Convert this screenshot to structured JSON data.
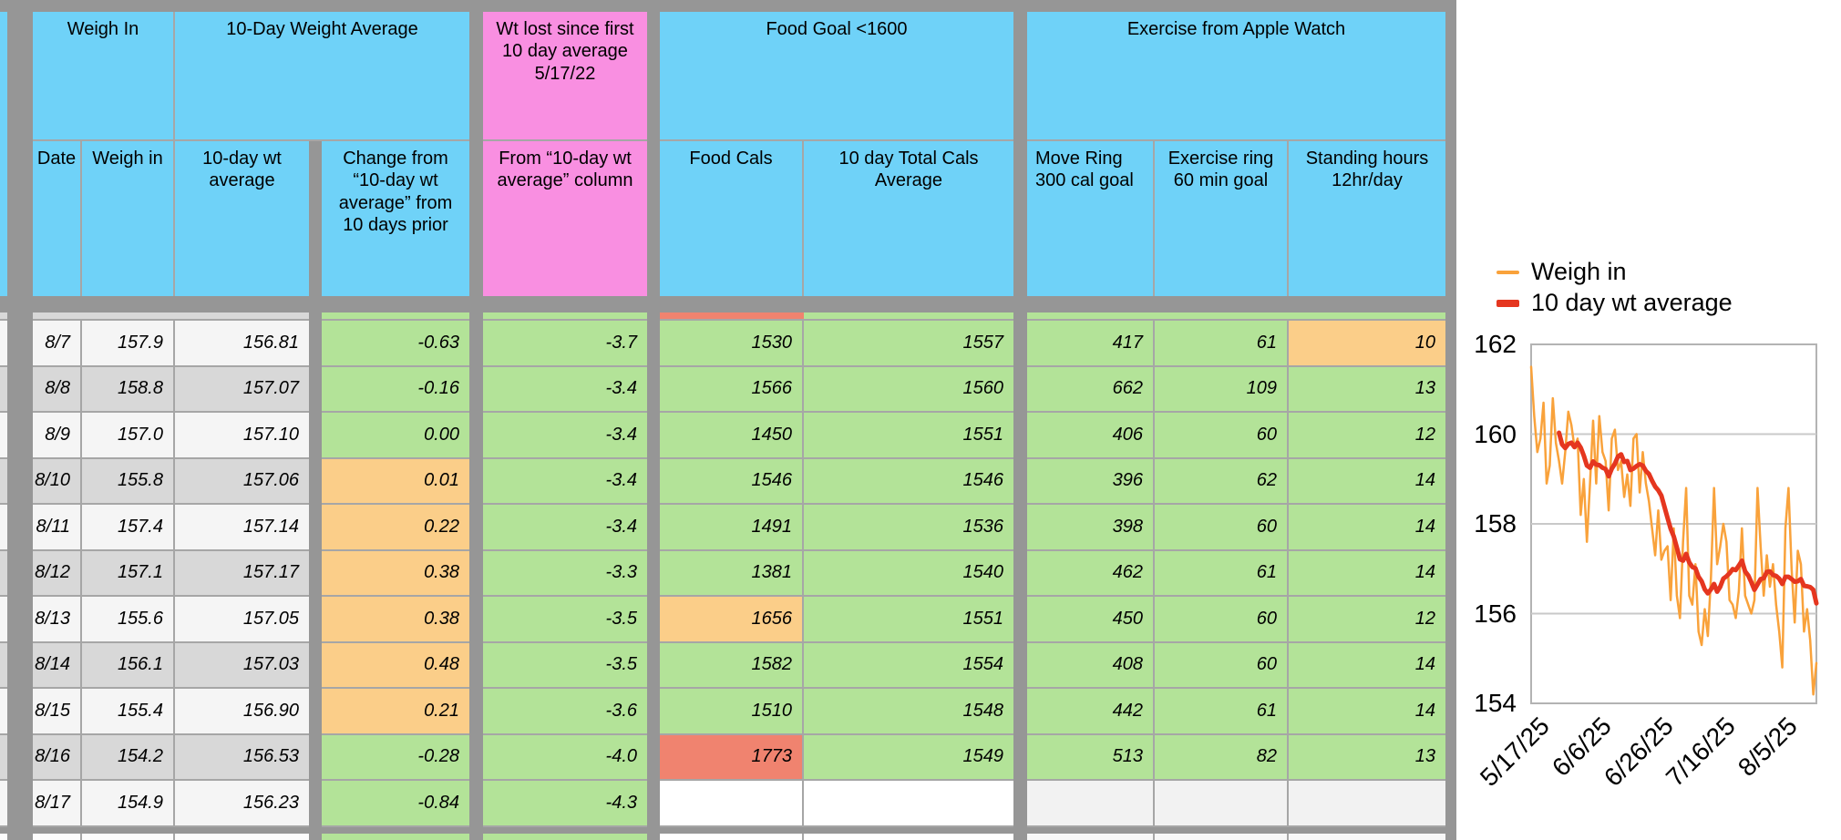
{
  "table": {
    "header_groups": [
      {
        "label": "Weigh In"
      },
      {
        "label": "10-Day Weight Average"
      },
      {
        "label": "Wt lost since first 10 day average 5/17/22"
      },
      {
        "label": "Food Goal <1600"
      },
      {
        "label": "Exercise from Apple Watch"
      }
    ],
    "columns": {
      "date": "Date",
      "weigh": "Weigh in",
      "avg": "10-day wt average",
      "change": "Change from “10-day wt average” from 10 days prior",
      "lost": "From “10-day wt average” column",
      "food": "Food Cals",
      "total": "10 day Total Cals Average",
      "move": "Move Ring 300 cal goal",
      "ex": "Exercise ring 60 min goal",
      "standing": "Standing hours 12hr/day"
    },
    "rows": [
      {
        "date": "8/7",
        "weigh": "157.9",
        "avg": "156.81",
        "change": "-0.63",
        "change_c": "g",
        "lost": "-3.7",
        "food": "1530",
        "total": "1557",
        "move": "417",
        "ex": "61",
        "standing": "10",
        "standing_c": "o",
        "shade": "light"
      },
      {
        "date": "8/8",
        "weigh": "158.8",
        "avg": "157.07",
        "change": "-0.16",
        "change_c": "g",
        "lost": "-3.4",
        "food": "1566",
        "total": "1560",
        "move": "662",
        "ex": "109",
        "standing": "13",
        "shade": "dark"
      },
      {
        "date": "8/9",
        "weigh": "157.0",
        "avg": "157.10",
        "change": "0.00",
        "change_c": "g",
        "lost": "-3.4",
        "food": "1450",
        "total": "1551",
        "move": "406",
        "ex": "60",
        "standing": "12",
        "shade": "light"
      },
      {
        "date": "8/10",
        "weigh": "155.8",
        "avg": "157.06",
        "change": "0.01",
        "change_c": "o",
        "lost": "-3.4",
        "food": "1546",
        "total": "1546",
        "move": "396",
        "ex": "62",
        "standing": "14",
        "shade": "dark"
      },
      {
        "date": "8/11",
        "weigh": "157.4",
        "avg": "157.14",
        "change": "0.22",
        "change_c": "o",
        "lost": "-3.4",
        "food": "1491",
        "total": "1536",
        "move": "398",
        "ex": "60",
        "standing": "14",
        "shade": "light"
      },
      {
        "date": "8/12",
        "weigh": "157.1",
        "avg": "157.17",
        "change": "0.38",
        "change_c": "o",
        "lost": "-3.3",
        "food": "1381",
        "total": "1540",
        "move": "462",
        "ex": "61",
        "standing": "14",
        "shade": "dark"
      },
      {
        "date": "8/13",
        "weigh": "155.6",
        "avg": "157.05",
        "change": "0.38",
        "change_c": "o",
        "lost": "-3.5",
        "food": "1656",
        "food_c": "o",
        "total": "1551",
        "move": "450",
        "ex": "60",
        "standing": "12",
        "shade": "light"
      },
      {
        "date": "8/14",
        "weigh": "156.1",
        "avg": "157.03",
        "change": "0.48",
        "change_c": "o",
        "lost": "-3.5",
        "food": "1582",
        "total": "1554",
        "move": "408",
        "ex": "60",
        "standing": "14",
        "shade": "dark"
      },
      {
        "date": "8/15",
        "weigh": "155.4",
        "avg": "156.90",
        "change": "0.21",
        "change_c": "o",
        "lost": "-3.6",
        "food": "1510",
        "total": "1548",
        "move": "442",
        "ex": "61",
        "standing": "14",
        "shade": "light"
      },
      {
        "date": "8/16",
        "weigh": "154.2",
        "avg": "156.53",
        "change": "-0.28",
        "change_c": "g",
        "lost": "-4.0",
        "food": "1773",
        "food_c": "r",
        "total": "1549",
        "move": "513",
        "ex": "82",
        "standing": "13",
        "shade": "dark"
      },
      {
        "date": "8/17",
        "weigh": "154.9",
        "avg": "156.23",
        "change": "-0.84",
        "change_c": "g",
        "lost": "-4.3",
        "food": "",
        "food_c": "w",
        "total": "",
        "total_c": "w",
        "move": "",
        "move_c": "e",
        "ex": "",
        "ex_c": "e",
        "standing": "",
        "standing_c": "e",
        "shade": "light"
      }
    ],
    "status_colors": {
      "good": "#B3E398",
      "warn": "#FBCE89",
      "bad": "#F0836F"
    }
  },
  "chart": {
    "legend": [
      {
        "label": "Weigh in",
        "color": "#F9A23B"
      },
      {
        "label": "10 day wt average",
        "color": "#E5361F"
      }
    ],
    "y_ticks": [
      "162",
      "160",
      "158",
      "156",
      "154"
    ],
    "x_ticks": [
      "5/17/25",
      "6/6/25",
      "6/26/25",
      "7/16/25",
      "8/5/25"
    ],
    "chart_data": {
      "type": "line",
      "title": "",
      "xlabel": "",
      "ylabel": "",
      "ylim": [
        154,
        162
      ],
      "x_range": [
        "5/17/25",
        "8/17/25"
      ],
      "x_tick_labels": [
        "5/17/25",
        "6/6/25",
        "6/26/25",
        "7/16/25",
        "8/5/25"
      ],
      "grid": true,
      "legend_position": "top",
      "series": [
        {
          "name": "Weigh in",
          "color": "#F9A23B",
          "values": [
            161.5,
            160.4,
            159.6,
            159.9,
            160.7,
            158.9,
            159.3,
            160.8,
            159.8,
            159.4,
            158.9,
            159.6,
            160.5,
            160.2,
            159.7,
            159.9,
            158.2,
            159.0,
            157.6,
            158.9,
            160.3,
            158.9,
            160.4,
            159.6,
            159.4,
            158.3,
            159.9,
            160.1,
            159.2,
            159.4,
            158.6,
            159.1,
            158.4,
            159.9,
            160.0,
            158.7,
            159.6,
            158.9,
            158.5,
            157.9,
            157.3,
            158.3,
            157.2,
            157.4,
            157.5,
            156.3,
            157.9,
            156.4,
            155.9,
            157.6,
            158.8,
            156.4,
            156.2,
            157.1,
            155.6,
            155.3,
            156.1,
            155.5,
            156.8,
            158.8,
            157.1,
            157.5,
            158.0,
            157.6,
            156.3,
            156.2,
            155.9,
            156.5,
            157.9,
            156.4,
            156.2,
            156.0,
            156.3,
            158.8,
            157.5,
            156.4,
            157.3,
            156.6,
            157.1,
            156.2,
            155.6,
            154.8,
            157.9,
            158.8,
            157.0,
            155.8,
            157.4,
            157.1,
            155.6,
            156.1,
            155.4,
            154.2,
            154.9
          ]
        },
        {
          "name": "10 day wt average",
          "color": "#E5361F",
          "derivation": "10-day rolling mean of the Weigh in series; last values 156.81, 157.07, 157.10, 157.06, 157.14, 157.17, 157.05, 157.03, 156.90, 156.53, 156.23",
          "window": 10
        }
      ]
    }
  }
}
